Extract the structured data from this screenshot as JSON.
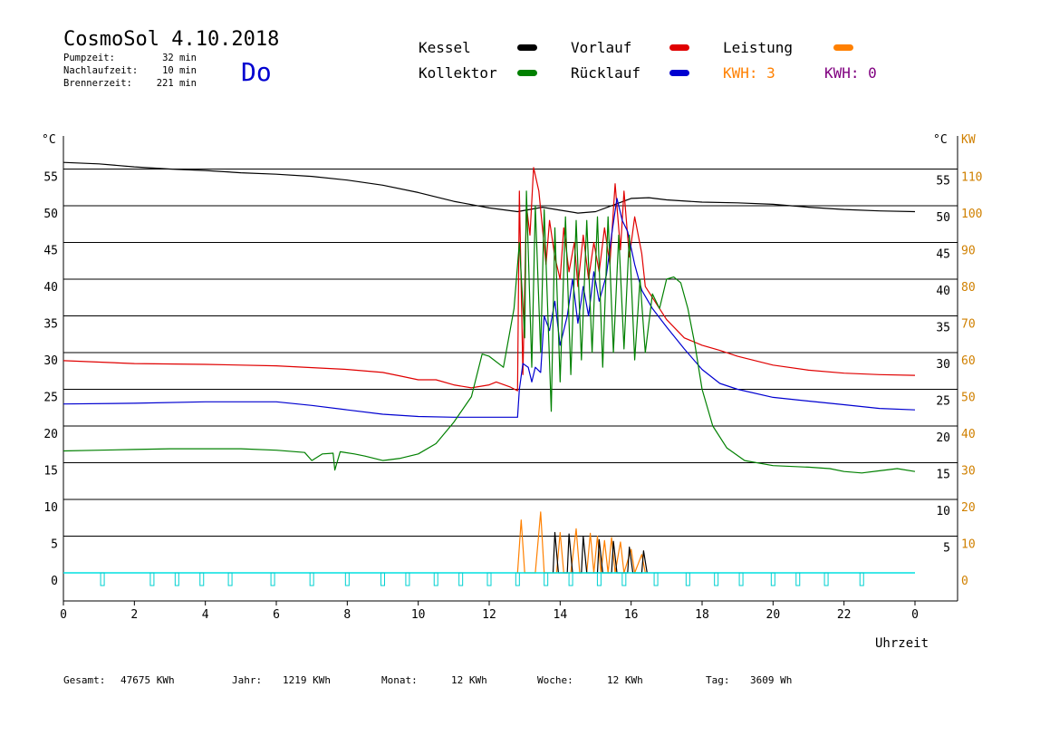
{
  "header": {
    "title": "CosmoSol 4.10.2018",
    "day": "Do",
    "stats": [
      {
        "label": "Pumpzeit:",
        "value": "32 min"
      },
      {
        "label": "Nachlaufzeit:",
        "value": "10 min"
      },
      {
        "label": "Brennerzeit:",
        "value": "221 min"
      }
    ]
  },
  "legend": [
    {
      "label": "Kessel",
      "color": "#000000"
    },
    {
      "label": "Vorlauf",
      "color": "#e00000"
    },
    {
      "label": "Leistung",
      "color": "#ff8000"
    },
    {
      "label": "Kollektor",
      "color": "#008000"
    },
    {
      "label": "Rücklauf",
      "color": "#0000d0"
    },
    {
      "label": "KWH: 3",
      "color": "#ff8000"
    },
    {
      "label": "KWH: 0",
      "color": "#800080"
    }
  ],
  "footer": [
    {
      "label": "Gesamt:",
      "value": "47675 KWh"
    },
    {
      "label": "Jahr:",
      "value": "1219 KWh"
    },
    {
      "label": "Monat:",
      "value": "12 KWh"
    },
    {
      "label": "Woche:",
      "value": "12 KWh"
    },
    {
      "label": "Tag:",
      "value": "3609 Wh"
    }
  ],
  "chart_data": {
    "type": "line",
    "xlabel": "Uhrzeit",
    "ylabel_left": "°C",
    "ylabel_right_temp": "°C",
    "ylabel_right_power": "KW",
    "xlim": [
      0,
      24
    ],
    "ylim": [
      0,
      55
    ],
    "y2lim": [
      0,
      110
    ],
    "x_ticks": [
      "0",
      "2",
      "4",
      "6",
      "8",
      "10",
      "12",
      "14",
      "16",
      "18",
      "20",
      "22",
      "0"
    ],
    "y_ticks_left": [
      "55",
      "50",
      "45",
      "40",
      "35",
      "30",
      "25",
      "20",
      "15",
      "10",
      "5",
      "0"
    ],
    "y_ticks_right_temp": [
      "55",
      "50",
      "45",
      "40",
      "35",
      "30",
      "25",
      "20",
      "15",
      "10",
      "5"
    ],
    "y_ticks_right_power": [
      "110",
      "100",
      "90",
      "80",
      "70",
      "60",
      "50",
      "40",
      "30",
      "20",
      "10",
      "0"
    ],
    "grid": true,
    "series": [
      {
        "name": "Kessel",
        "color": "#000000",
        "points": [
          [
            0,
            55.9
          ],
          [
            1,
            55.7
          ],
          [
            2,
            55.3
          ],
          [
            3,
            55.0
          ],
          [
            4,
            54.8
          ],
          [
            5,
            54.5
          ],
          [
            6,
            54.3
          ],
          [
            7,
            54.0
          ],
          [
            8,
            53.5
          ],
          [
            9,
            52.8
          ],
          [
            10,
            51.8
          ],
          [
            11,
            50.6
          ],
          [
            12,
            49.7
          ],
          [
            12.8,
            49.2
          ],
          [
            13.5,
            49.8
          ],
          [
            14,
            49.4
          ],
          [
            14.5,
            49.0
          ],
          [
            15,
            49.2
          ],
          [
            15.5,
            50.1
          ],
          [
            16,
            51.0
          ],
          [
            16.5,
            51.1
          ],
          [
            17,
            50.8
          ],
          [
            18,
            50.5
          ],
          [
            19,
            50.4
          ],
          [
            20,
            50.2
          ],
          [
            21,
            49.8
          ],
          [
            22,
            49.5
          ],
          [
            23,
            49.3
          ],
          [
            24,
            49.2
          ]
        ]
      },
      {
        "name": "Vorlauf",
        "color": "#e00000",
        "points": [
          [
            0,
            28.9
          ],
          [
            2,
            28.5
          ],
          [
            4,
            28.4
          ],
          [
            6,
            28.2
          ],
          [
            8,
            27.7
          ],
          [
            9,
            27.3
          ],
          [
            9.5,
            26.8
          ],
          [
            10,
            26.3
          ],
          [
            10.5,
            26.3
          ],
          [
            11,
            25.6
          ],
          [
            11.5,
            25.2
          ],
          [
            12,
            25.6
          ],
          [
            12.2,
            26.0
          ],
          [
            12.6,
            25.3
          ],
          [
            12.8,
            24.8
          ],
          [
            12.85,
            52.0
          ],
          [
            12.95,
            27.0
          ],
          [
            13.05,
            50.0
          ],
          [
            13.15,
            46.0
          ],
          [
            13.25,
            55.2
          ],
          [
            13.4,
            52.0
          ],
          [
            13.6,
            42.0
          ],
          [
            13.7,
            48.0
          ],
          [
            13.85,
            43.0
          ],
          [
            14.0,
            40.0
          ],
          [
            14.1,
            47.0
          ],
          [
            14.25,
            41.0
          ],
          [
            14.4,
            45.0
          ],
          [
            14.5,
            39.0
          ],
          [
            14.65,
            46.0
          ],
          [
            14.8,
            40.0
          ],
          [
            14.95,
            45.0
          ],
          [
            15.1,
            41.0
          ],
          [
            15.25,
            47.0
          ],
          [
            15.4,
            42.0
          ],
          [
            15.55,
            53.0
          ],
          [
            15.7,
            44.0
          ],
          [
            15.8,
            52.0
          ],
          [
            15.95,
            43.0
          ],
          [
            16.1,
            48.5
          ],
          [
            16.3,
            43.5
          ],
          [
            16.4,
            39.0
          ],
          [
            16.6,
            37.5
          ],
          [
            17,
            34.5
          ],
          [
            17.5,
            32.0
          ],
          [
            18,
            31.0
          ],
          [
            18.5,
            30.3
          ],
          [
            19,
            29.5
          ],
          [
            20,
            28.3
          ],
          [
            21,
            27.6
          ],
          [
            22,
            27.2
          ],
          [
            23,
            27.0
          ],
          [
            24,
            26.9
          ]
        ]
      },
      {
        "name": "Rücklauf",
        "color": "#0000d0",
        "points": [
          [
            0,
            23.0
          ],
          [
            2,
            23.1
          ],
          [
            4,
            23.3
          ],
          [
            6,
            23.3
          ],
          [
            7,
            22.8
          ],
          [
            8,
            22.2
          ],
          [
            9,
            21.6
          ],
          [
            10,
            21.3
          ],
          [
            11,
            21.2
          ],
          [
            12,
            21.2
          ],
          [
            12.8,
            21.2
          ],
          [
            12.85,
            25.0
          ],
          [
            12.95,
            28.5
          ],
          [
            13.1,
            28.0
          ],
          [
            13.2,
            26.0
          ],
          [
            13.3,
            28.0
          ],
          [
            13.45,
            27.3
          ],
          [
            13.55,
            35.0
          ],
          [
            13.7,
            33.0
          ],
          [
            13.85,
            37.0
          ],
          [
            14.0,
            31.0
          ],
          [
            14.2,
            35.0
          ],
          [
            14.35,
            40.0
          ],
          [
            14.5,
            34.0
          ],
          [
            14.65,
            39.0
          ],
          [
            14.8,
            35.0
          ],
          [
            14.95,
            41.0
          ],
          [
            15.1,
            37.0
          ],
          [
            15.3,
            40.5
          ],
          [
            15.45,
            46.0
          ],
          [
            15.6,
            51.0
          ],
          [
            15.75,
            48.0
          ],
          [
            15.9,
            46.5
          ],
          [
            16.1,
            42.0
          ],
          [
            16.3,
            38.5
          ],
          [
            16.6,
            36.0
          ],
          [
            17,
            33.5
          ],
          [
            17.5,
            30.5
          ],
          [
            18,
            27.7
          ],
          [
            18.5,
            25.8
          ],
          [
            19,
            25.0
          ],
          [
            20,
            23.9
          ],
          [
            21,
            23.4
          ],
          [
            22,
            22.9
          ],
          [
            23,
            22.4
          ],
          [
            24,
            22.2
          ]
        ]
      },
      {
        "name": "Kollektor",
        "color": "#008000",
        "points": [
          [
            0,
            16.6
          ],
          [
            1,
            16.7
          ],
          [
            2,
            16.8
          ],
          [
            3,
            16.9
          ],
          [
            4,
            16.9
          ],
          [
            5,
            16.9
          ],
          [
            6,
            16.7
          ],
          [
            6.8,
            16.4
          ],
          [
            7.0,
            15.3
          ],
          [
            7.3,
            16.2
          ],
          [
            7.6,
            16.3
          ],
          [
            7.65,
            14.0
          ],
          [
            7.8,
            16.5
          ],
          [
            8.2,
            16.2
          ],
          [
            8.5,
            15.9
          ],
          [
            9,
            15.3
          ],
          [
            9.5,
            15.6
          ],
          [
            10,
            16.2
          ],
          [
            10.5,
            17.6
          ],
          [
            11,
            20.5
          ],
          [
            11.5,
            24.0
          ],
          [
            11.8,
            29.8
          ],
          [
            12.0,
            29.5
          ],
          [
            12.4,
            28.0
          ],
          [
            12.7,
            36.0
          ],
          [
            12.85,
            45.0
          ],
          [
            13.0,
            32.0
          ],
          [
            13.05,
            52.0
          ],
          [
            13.2,
            28.0
          ],
          [
            13.3,
            50.0
          ],
          [
            13.45,
            30.0
          ],
          [
            13.55,
            49.5
          ],
          [
            13.75,
            22.0
          ],
          [
            13.85,
            47.0
          ],
          [
            14.0,
            26.0
          ],
          [
            14.15,
            48.5
          ],
          [
            14.3,
            27.0
          ],
          [
            14.45,
            48.0
          ],
          [
            14.6,
            29.0
          ],
          [
            14.75,
            48.0
          ],
          [
            14.9,
            30.0
          ],
          [
            15.05,
            48.5
          ],
          [
            15.2,
            28.0
          ],
          [
            15.35,
            48.5
          ],
          [
            15.5,
            30.0
          ],
          [
            15.65,
            46.0
          ],
          [
            15.8,
            30.5
          ],
          [
            15.95,
            46.0
          ],
          [
            16.1,
            29.0
          ],
          [
            16.25,
            40.0
          ],
          [
            16.4,
            30.0
          ],
          [
            16.6,
            38.0
          ],
          [
            16.8,
            36.0
          ],
          [
            17,
            40.0
          ],
          [
            17.2,
            40.3
          ],
          [
            17.4,
            39.5
          ],
          [
            17.6,
            36.0
          ],
          [
            17.8,
            31.0
          ],
          [
            18,
            25.0
          ],
          [
            18.3,
            20.0
          ],
          [
            18.7,
            17.0
          ],
          [
            19.2,
            15.3
          ],
          [
            20,
            14.6
          ],
          [
            21,
            14.4
          ],
          [
            21.6,
            14.2
          ],
          [
            22,
            13.8
          ],
          [
            22.5,
            13.6
          ],
          [
            23,
            13.9
          ],
          [
            23.5,
            14.2
          ],
          [
            24,
            13.8
          ]
        ]
      },
      {
        "name": "Leistung",
        "color": "#ff8000",
        "points": [
          [
            12.8,
            0
          ],
          [
            12.9,
            7.2
          ],
          [
            13.0,
            0
          ],
          [
            13.3,
            0
          ],
          [
            13.45,
            8.3
          ],
          [
            13.55,
            0
          ],
          [
            13.9,
            0
          ],
          [
            14.0,
            5.5
          ],
          [
            14.1,
            0
          ],
          [
            14.3,
            0
          ],
          [
            14.45,
            6.0
          ],
          [
            14.55,
            0
          ],
          [
            14.75,
            0
          ],
          [
            14.85,
            5.4
          ],
          [
            14.95,
            0
          ],
          [
            15.05,
            5.0
          ],
          [
            15.15,
            0
          ],
          [
            15.25,
            4.4
          ],
          [
            15.35,
            0
          ],
          [
            15.45,
            4.8
          ],
          [
            15.55,
            0
          ],
          [
            15.7,
            4.2
          ],
          [
            15.8,
            0
          ],
          [
            16.0,
            3.2
          ],
          [
            16.1,
            0
          ],
          [
            16.3,
            2.5
          ],
          [
            16.4,
            0
          ]
        ]
      },
      {
        "name": "Brenner",
        "color": "#000000",
        "points": [
          [
            13.8,
            0
          ],
          [
            13.85,
            5.5
          ],
          [
            13.95,
            0
          ],
          [
            14.2,
            0
          ],
          [
            14.25,
            5.3
          ],
          [
            14.35,
            0
          ],
          [
            14.6,
            0
          ],
          [
            14.65,
            5.0
          ],
          [
            14.75,
            0
          ],
          [
            15.05,
            0
          ],
          [
            15.1,
            4.5
          ],
          [
            15.2,
            0
          ],
          [
            15.45,
            0
          ],
          [
            15.5,
            4.3
          ],
          [
            15.6,
            0
          ],
          [
            15.9,
            0
          ],
          [
            15.95,
            3.5
          ],
          [
            16.05,
            0
          ],
          [
            16.3,
            0
          ],
          [
            16.35,
            3.0
          ],
          [
            16.45,
            0
          ]
        ]
      }
    ],
    "pump_marker_hours": [
      1.1,
      2.5,
      3.2,
      3.9,
      4.7,
      5.9,
      7.0,
      8.0,
      9.0,
      9.7,
      10.5,
      11.2,
      12.0,
      12.8,
      13.6,
      14.3,
      15.1,
      15.8,
      16.7,
      17.6,
      18.4,
      19.1,
      20.0,
      20.7,
      21.5,
      22.5
    ]
  }
}
